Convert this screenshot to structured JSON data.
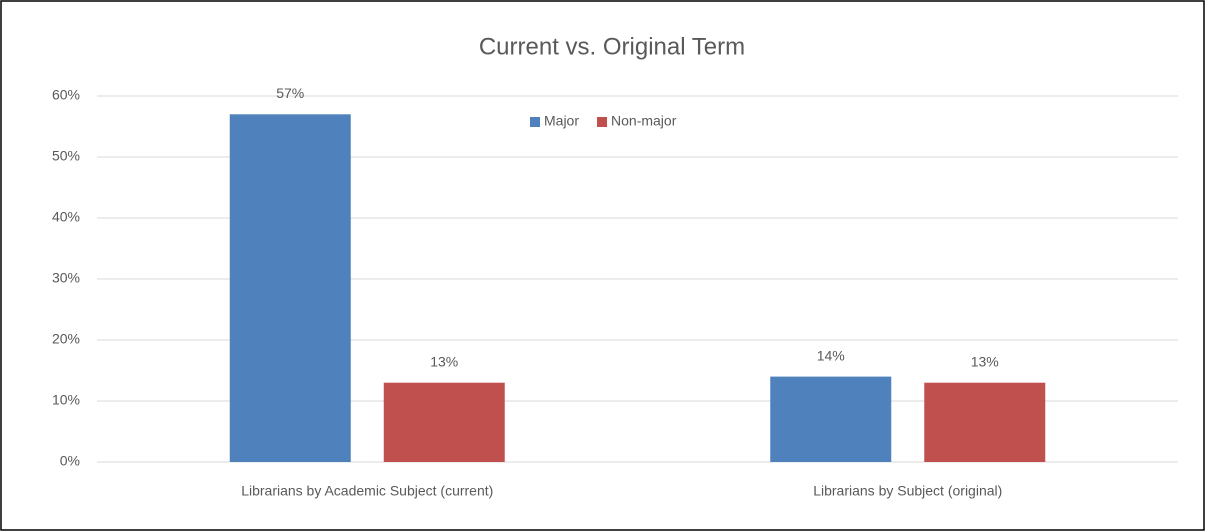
{
  "chart_data": {
    "type": "bar",
    "title": "Current vs. Original Term",
    "categories": [
      "Librarians by Academic Subject (current)",
      "Librarians by Subject (original)"
    ],
    "series": [
      {
        "name": "Major",
        "color": "#4f81bd",
        "values": [
          57,
          14
        ],
        "value_labels": [
          "57%",
          "14%"
        ]
      },
      {
        "name": "Non-major",
        "color": "#c0504d",
        "values": [
          13,
          13
        ],
        "value_labels": [
          "13%",
          "13%"
        ]
      }
    ],
    "ylim": [
      0,
      60
    ],
    "yticks": [
      {
        "value": 0,
        "label": "0%"
      },
      {
        "value": 10,
        "label": "10%"
      },
      {
        "value": 20,
        "label": "20%"
      },
      {
        "value": 30,
        "label": "30%"
      },
      {
        "value": 40,
        "label": "40%"
      },
      {
        "value": 50,
        "label": "50%"
      },
      {
        "value": 60,
        "label": "60%"
      }
    ],
    "grid": true,
    "legend": "top"
  }
}
